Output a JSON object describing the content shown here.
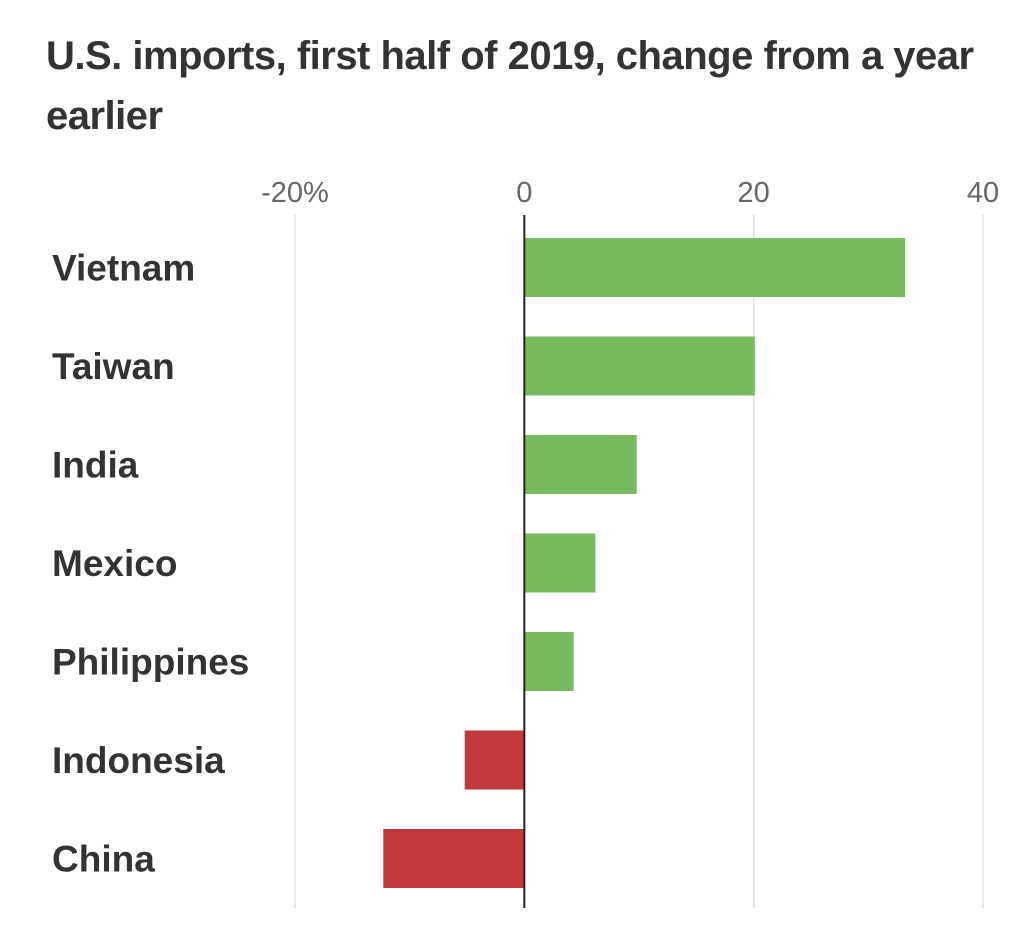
{
  "chart_data": {
    "type": "bar",
    "orientation": "horizontal",
    "title": "U.S. imports, first half of 2019, change from a year earlier",
    "categories": [
      "Vietnam",
      "Taiwan",
      "India",
      "Mexico",
      "Philippines",
      "Indonesia",
      "China"
    ],
    "values": [
      33.2,
      20.1,
      9.8,
      6.2,
      4.3,
      -5.2,
      -12.3
    ],
    "xlim": [
      -20,
      40
    ],
    "ticks": [
      {
        "value": -20,
        "label": "-20%"
      },
      {
        "value": 0,
        "label": "0"
      },
      {
        "value": 20,
        "label": "20"
      },
      {
        "value": 40,
        "label": "40"
      }
    ],
    "grid": true,
    "colors": {
      "positive": "#77bb5e",
      "negative": "#c0393b",
      "grid": "#dddddd",
      "zero_line": "#222222"
    }
  }
}
